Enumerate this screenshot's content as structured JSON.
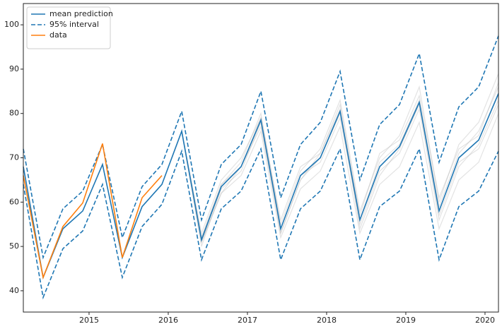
{
  "chart_data": {
    "type": "line",
    "x": [
      2014.17,
      2014.42,
      2014.67,
      2014.92,
      2015.17,
      2015.42,
      2015.67,
      2015.92,
      2016.17,
      2016.42,
      2016.67,
      2016.92,
      2017.17,
      2017.42,
      2017.67,
      2017.92,
      2018.17,
      2018.42,
      2018.67,
      2018.92,
      2019.17,
      2019.42,
      2019.67,
      2019.92,
      2020.17
    ],
    "xlim": [
      2014.17,
      2020.17
    ],
    "xticks": [
      2015,
      2016,
      2017,
      2018,
      2019,
      2020
    ],
    "ylim": [
      35.2,
      104.8
    ],
    "yticks": [
      40,
      50,
      60,
      70,
      80,
      90,
      100
    ],
    "legend": "upper left",
    "samples": {
      "color": "#b0b0b0",
      "values": [
        [
          null,
          null,
          null,
          null,
          null,
          null,
          null,
          null,
          76,
          52,
          64,
          69,
          80,
          55,
          67,
          72,
          83,
          58,
          70,
          75,
          86,
          60,
          73,
          78,
          89
        ],
        [
          null,
          null,
          null,
          null,
          null,
          null,
          null,
          null,
          76,
          51,
          62,
          66,
          76,
          52,
          63,
          67,
          77,
          53,
          64,
          68,
          78,
          54,
          65,
          69,
          80
        ],
        [
          null,
          null,
          null,
          null,
          null,
          null,
          null,
          null,
          76,
          53,
          65,
          70,
          79,
          56,
          68,
          71,
          82,
          57,
          71,
          74,
          84,
          61,
          72,
          75,
          87
        ],
        [
          null,
          null,
          null,
          null,
          null,
          null,
          null,
          null,
          76,
          50,
          63,
          67,
          78,
          53,
          65,
          70,
          80,
          55,
          67,
          71,
          81,
          56,
          68,
          73,
          83
        ],
        [
          null,
          null,
          null,
          null,
          null,
          null,
          null,
          null,
          76,
          52,
          64,
          68,
          77,
          54,
          66,
          69,
          79,
          56,
          69,
          73,
          83,
          59,
          71,
          76,
          86
        ],
        [
          null,
          null,
          null,
          null,
          null,
          null,
          null,
          null,
          76,
          51,
          62,
          68,
          79,
          53,
          65,
          71,
          81,
          54,
          66,
          72,
          82,
          57,
          69,
          72,
          82
        ]
      ]
    },
    "series": [
      {
        "name": "mean prediction",
        "color": "#1f77b4",
        "values": [
          68,
          43,
          54,
          58,
          68.5,
          47.5,
          59,
          64,
          76,
          51.5,
          63.5,
          68,
          78.5,
          54,
          66,
          70,
          80.5,
          56,
          68,
          72.5,
          82.5,
          58,
          70,
          74,
          84.5
        ]
      },
      {
        "name": "95% interval",
        "color": "#1f77b4",
        "dashed": true,
        "upper": [
          72,
          47.5,
          58.5,
          62.5,
          73,
          52,
          63.5,
          68.5,
          80.5,
          56,
          68.5,
          73,
          85,
          61,
          73,
          78,
          89.5,
          65,
          77.5,
          82,
          93.5,
          69,
          81.5,
          86,
          97.5
        ],
        "lower": [
          64,
          38.5,
          49.5,
          53.5,
          64,
          43,
          54.5,
          59.5,
          71.5,
          47,
          58.5,
          62.5,
          72,
          47,
          58.5,
          62.5,
          72,
          47,
          59,
          62.5,
          72,
          47,
          59,
          62.5,
          71.5
        ]
      },
      {
        "name": "data",
        "color": "#ff7f0e",
        "values": [
          66,
          43,
          54.5,
          59.8,
          73.2,
          47.5,
          61,
          66,
          null,
          null,
          null,
          null,
          null,
          null,
          null,
          null,
          null,
          null,
          null,
          null,
          null,
          null,
          null,
          null,
          null
        ]
      }
    ]
  }
}
